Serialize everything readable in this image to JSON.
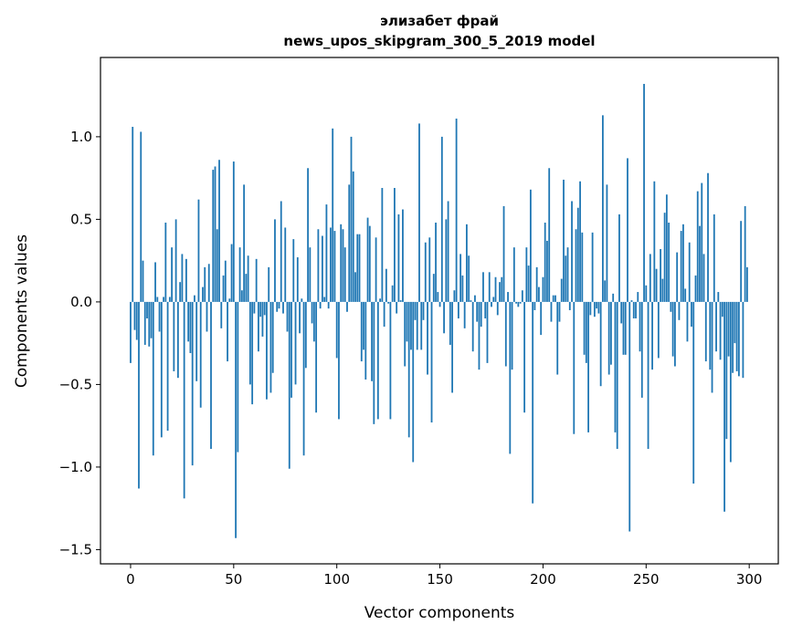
{
  "chart_data": {
    "type": "bar",
    "title": "элизабет фрай",
    "subtitle": "news_upos_skipgram_300_5_2019 model",
    "xlabel": "Vector components",
    "ylabel": "Components values",
    "xlim": [
      -14.6,
      314.1
    ],
    "ylim": [
      -1.586,
      1.48
    ],
    "xticks": [
      0,
      50,
      100,
      150,
      200,
      250,
      300
    ],
    "xtick_labels": [
      "0",
      "50",
      "100",
      "150",
      "200",
      "250",
      "300"
    ],
    "yticks": [
      -1.5,
      -1.0,
      -0.5,
      0.0,
      0.5,
      1.0
    ],
    "ytick_labels": [
      "−1.5",
      "−1.0",
      "−0.5",
      "0.0",
      "0.5",
      "1.0"
    ],
    "grid": false,
    "color": "#1f77b4",
    "values": [
      -0.37,
      1.06,
      -0.17,
      -0.23,
      -1.13,
      1.03,
      0.25,
      -0.26,
      -0.1,
      -0.27,
      -0.22,
      -0.93,
      0.24,
      0.03,
      -0.18,
      -0.82,
      0.03,
      0.48,
      -0.78,
      0.03,
      0.33,
      -0.42,
      0.5,
      -0.46,
      0.12,
      0.29,
      -1.19,
      0.26,
      -0.24,
      -0.31,
      -0.99,
      0.04,
      -0.48,
      0.62,
      -0.64,
      0.09,
      0.21,
      -0.18,
      0.23,
      -0.89,
      0.8,
      0.82,
      0.44,
      0.86,
      -0.16,
      0.16,
      0.25,
      -0.36,
      0.02,
      0.35,
      0.85,
      -1.43,
      -0.91,
      0.33,
      0.07,
      0.71,
      0.17,
      0.28,
      -0.5,
      -0.62,
      -0.07,
      0.26,
      -0.3,
      -0.09,
      -0.21,
      -0.08,
      -0.59,
      0.21,
      -0.55,
      -0.43,
      0.5,
      -0.06,
      -0.04,
      0.61,
      -0.07,
      0.45,
      -0.18,
      -1.01,
      -0.58,
      0.38,
      -0.5,
      0.27,
      -0.19,
      0.02,
      -0.93,
      -0.4,
      0.81,
      0.33,
      -0.13,
      -0.24,
      -0.67,
      0.44,
      -0.04,
      0.4,
      0.03,
      0.59,
      -0.04,
      0.45,
      1.05,
      0.43,
      -0.34,
      -0.71,
      0.47,
      0.44,
      0.33,
      -0.06,
      0.71,
      1.0,
      0.79,
      0.18,
      0.41,
      0.41,
      -0.36,
      -0.29,
      -0.47,
      0.51,
      0.46,
      -0.48,
      -0.74,
      0.39,
      -0.71,
      0.02,
      0.69,
      -0.15,
      0.2,
      -0.01,
      -0.71,
      0.1,
      0.69,
      -0.07,
      0.53,
      0.01,
      0.56,
      -0.39,
      -0.24,
      -0.82,
      -0.29,
      -0.97,
      -0.11,
      -0.29,
      1.08,
      -0.29,
      -0.11,
      0.36,
      -0.44,
      0.39,
      -0.73,
      0.17,
      0.48,
      0.06,
      -0.03,
      1.0,
      -0.19,
      0.5,
      0.61,
      -0.26,
      -0.55,
      0.07,
      1.11,
      -0.1,
      0.29,
      0.16,
      -0.16,
      0.47,
      0.28,
      0.01,
      -0.3,
      0.04,
      -0.12,
      -0.41,
      -0.15,
      0.18,
      -0.1,
      -0.37,
      0.18,
      -0.03,
      0.03,
      0.15,
      -0.08,
      0.12,
      0.15,
      0.58,
      -0.39,
      0.06,
      -0.92,
      -0.41,
      0.33,
      -0.01,
      -0.03,
      -0.01,
      0.07,
      -0.67,
      0.33,
      0.22,
      0.68,
      -1.22,
      -0.05,
      0.21,
      0.09,
      -0.2,
      0.15,
      0.48,
      0.37,
      0.81,
      -0.12,
      0.04,
      0.04,
      -0.44,
      -0.12,
      0.14,
      0.74,
      0.28,
      0.33,
      -0.05,
      0.61,
      -0.8,
      0.44,
      0.57,
      0.73,
      0.42,
      -0.32,
      -0.37,
      -0.79,
      -0.08,
      0.42,
      -0.09,
      -0.04,
      -0.07,
      -0.51,
      1.13,
      0.13,
      0.71,
      -0.44,
      -0.38,
      0.05,
      -0.79,
      -0.89,
      0.53,
      -0.13,
      -0.32,
      -0.32,
      0.87,
      -1.39,
      0.01,
      -0.1,
      -0.1,
      0.06,
      -0.3,
      -0.58,
      1.32,
      0.1,
      -0.89,
      0.29,
      -0.41,
      0.73,
      0.2,
      -0.34,
      0.32,
      0.14,
      0.54,
      0.65,
      0.48,
      -0.06,
      -0.33,
      -0.39,
      0.3,
      -0.11,
      0.43,
      0.47,
      0.08,
      -0.24,
      0.36,
      -0.15,
      -1.1,
      0.16,
      0.67,
      0.46,
      0.72,
      0.29,
      -0.36,
      0.78,
      -0.41,
      -0.55,
      0.53,
      -0.3,
      0.06,
      -0.35,
      -0.09,
      -1.27,
      -0.83,
      -0.33,
      -0.97,
      -0.43,
      -0.25,
      -0.42,
      -0.45,
      0.49,
      -0.46,
      0.58,
      0.21
    ]
  }
}
